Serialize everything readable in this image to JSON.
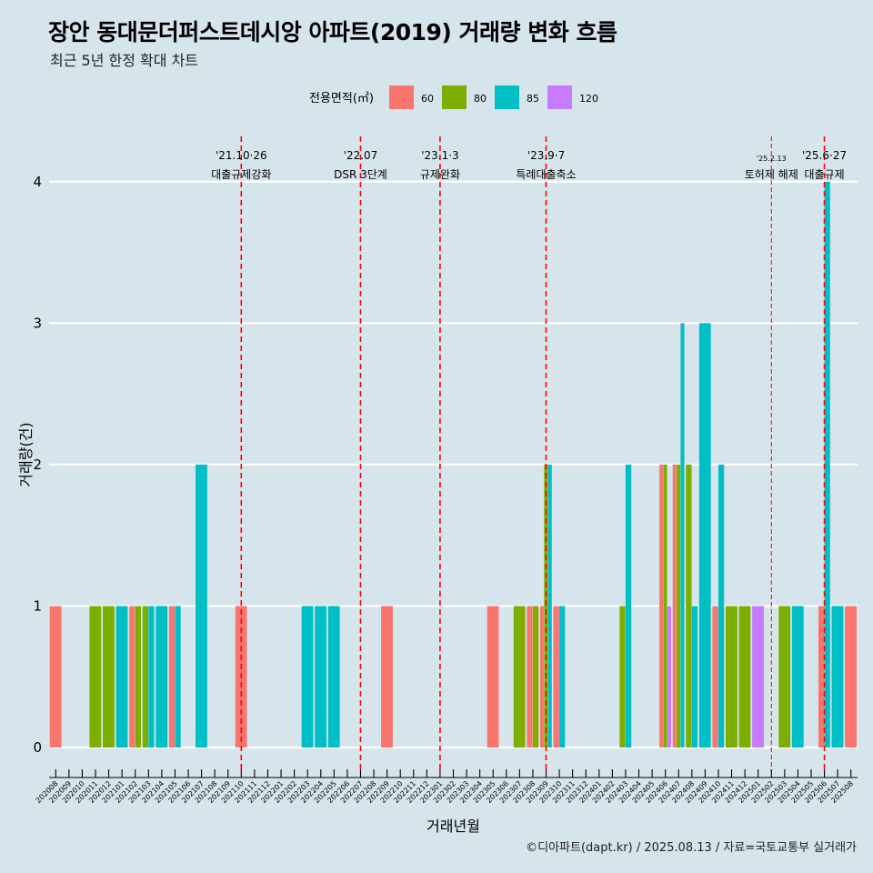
{
  "title": "장안 동대문더퍼스트데시앙 아파트(2019) 거래량 변화 흐름",
  "subtitle": "최근 5년 한정 확대 차트",
  "caption": "©디아파트(dapt.kr) / 2025.08.13 / 자료=국토교통부 실거래가",
  "colors": {
    "background": "#d6e4ec",
    "60": "#f8766d",
    "80": "#7cae00",
    "85": "#00bfc4",
    "120": "#c77cff",
    "event_line": "#ff0000",
    "grid": "#ffffff"
  },
  "chart_data": {
    "type": "bar",
    "xlabel": "거래년월",
    "ylabel": "거래량(건)",
    "ylim": [
      -0.18,
      4.32
    ],
    "yticks": [
      0,
      1,
      2,
      3,
      4
    ],
    "grid": true,
    "legend": {
      "title": "전용면적(㎡)",
      "placement": "top",
      "entries": [
        "60",
        "80",
        "85",
        "120"
      ]
    },
    "months": [
      "202008",
      "202009",
      "202010",
      "202011",
      "202012",
      "202101",
      "202102",
      "202103",
      "202104",
      "202105",
      "202106",
      "202107",
      "202108",
      "202109",
      "202110",
      "202111",
      "202112",
      "202201",
      "202202",
      "202203",
      "202204",
      "202205",
      "202206",
      "202207",
      "202208",
      "202209",
      "202210",
      "202211",
      "202212",
      "202301",
      "202302",
      "202303",
      "202304",
      "202305",
      "202306",
      "202307",
      "202308",
      "202309",
      "202310",
      "202311",
      "202312",
      "202401",
      "202402",
      "202403",
      "202404",
      "202405",
      "202406",
      "202407",
      "202408",
      "202409",
      "202410",
      "202411",
      "202412",
      "202501",
      "202502",
      "202503",
      "202504",
      "202505",
      "202506",
      "202507",
      "202508"
    ],
    "bars": [
      {
        "month": "202008",
        "series": [
          {
            "area": "60",
            "count": 1
          }
        ]
      },
      {
        "month": "202011",
        "series": [
          {
            "area": "80",
            "count": 1
          }
        ]
      },
      {
        "month": "202012",
        "series": [
          {
            "area": "80",
            "count": 1
          }
        ]
      },
      {
        "month": "202101",
        "series": [
          {
            "area": "85",
            "count": 1
          }
        ]
      },
      {
        "month": "202102",
        "series": [
          {
            "area": "60",
            "count": 1
          },
          {
            "area": "80",
            "count": 1
          }
        ]
      },
      {
        "month": "202103",
        "series": [
          {
            "area": "80",
            "count": 1
          },
          {
            "area": "85",
            "count": 1
          }
        ]
      },
      {
        "month": "202104",
        "series": [
          {
            "area": "85",
            "count": 1
          }
        ]
      },
      {
        "month": "202105",
        "series": [
          {
            "area": "60",
            "count": 1
          },
          {
            "area": "85",
            "count": 1
          }
        ]
      },
      {
        "month": "202107",
        "series": [
          {
            "area": "85",
            "count": 2
          }
        ]
      },
      {
        "month": "202110",
        "series": [
          {
            "area": "60",
            "count": 1
          }
        ]
      },
      {
        "month": "202203",
        "series": [
          {
            "area": "85",
            "count": 1
          }
        ]
      },
      {
        "month": "202204",
        "series": [
          {
            "area": "85",
            "count": 1
          }
        ]
      },
      {
        "month": "202205",
        "series": [
          {
            "area": "85",
            "count": 1
          }
        ]
      },
      {
        "month": "202209",
        "series": [
          {
            "area": "60",
            "count": 1
          }
        ]
      },
      {
        "month": "202305",
        "series": [
          {
            "area": "60",
            "count": 1
          }
        ]
      },
      {
        "month": "202307",
        "series": [
          {
            "area": "80",
            "count": 1
          }
        ]
      },
      {
        "month": "202308",
        "series": [
          {
            "area": "60",
            "count": 1
          },
          {
            "area": "80",
            "count": 1
          }
        ]
      },
      {
        "month": "202309",
        "series": [
          {
            "area": "60",
            "count": 1
          },
          {
            "area": "80",
            "count": 2
          },
          {
            "area": "85",
            "count": 2
          }
        ]
      },
      {
        "month": "202310",
        "series": [
          {
            "area": "60",
            "count": 1
          },
          {
            "area": "85",
            "count": 1
          }
        ]
      },
      {
        "month": "202403",
        "series": [
          {
            "area": "80",
            "count": 1
          },
          {
            "area": "85",
            "count": 2
          }
        ]
      },
      {
        "month": "202406",
        "series": [
          {
            "area": "60",
            "count": 2
          },
          {
            "area": "80",
            "count": 2
          },
          {
            "area": "120",
            "count": 1
          }
        ]
      },
      {
        "month": "202407",
        "series": [
          {
            "area": "60",
            "count": 2
          },
          {
            "area": "80",
            "count": 2
          },
          {
            "area": "85",
            "count": 3
          }
        ]
      },
      {
        "month": "202408",
        "series": [
          {
            "area": "80",
            "count": 2
          },
          {
            "area": "85",
            "count": 1
          }
        ]
      },
      {
        "month": "202409",
        "series": [
          {
            "area": "85",
            "count": 3
          }
        ]
      },
      {
        "month": "202410",
        "series": [
          {
            "area": "60",
            "count": 1
          },
          {
            "area": "85",
            "count": 2
          }
        ]
      },
      {
        "month": "202411",
        "series": [
          {
            "area": "80",
            "count": 1
          }
        ]
      },
      {
        "month": "202412",
        "series": [
          {
            "area": "80",
            "count": 1
          }
        ]
      },
      {
        "month": "202501",
        "series": [
          {
            "area": "120",
            "count": 1
          }
        ]
      },
      {
        "month": "202503",
        "series": [
          {
            "area": "80",
            "count": 1
          }
        ]
      },
      {
        "month": "202504",
        "series": [
          {
            "area": "85",
            "count": 1
          }
        ]
      },
      {
        "month": "202506",
        "series": [
          {
            "area": "60",
            "count": 1
          },
          {
            "area": "85",
            "count": 4
          }
        ]
      },
      {
        "month": "202507",
        "series": [
          {
            "area": "85",
            "count": 1
          }
        ]
      },
      {
        "month": "202508",
        "series": [
          {
            "area": "60",
            "count": 1
          }
        ]
      }
    ],
    "annotations": [
      {
        "month": "202110",
        "date": "'21.10·26",
        "label": "대출규제강화",
        "style": "dashed"
      },
      {
        "month": "202207",
        "date": "'22.07",
        "label": "DSR 3단계",
        "style": "dashed"
      },
      {
        "month": "202301",
        "date": "'23.1·3",
        "label": "규제완화",
        "style": "dashed"
      },
      {
        "month": "202309",
        "date": "'23.9·7",
        "label": "특례대출축소",
        "style": "dashed"
      },
      {
        "month": "202502",
        "date": "'25.2.13",
        "label": "토허제 해제",
        "style": "thin-dashed"
      },
      {
        "month": "202506",
        "date": "'25.6·27",
        "label": "대출규제",
        "style": "dashed"
      }
    ]
  }
}
